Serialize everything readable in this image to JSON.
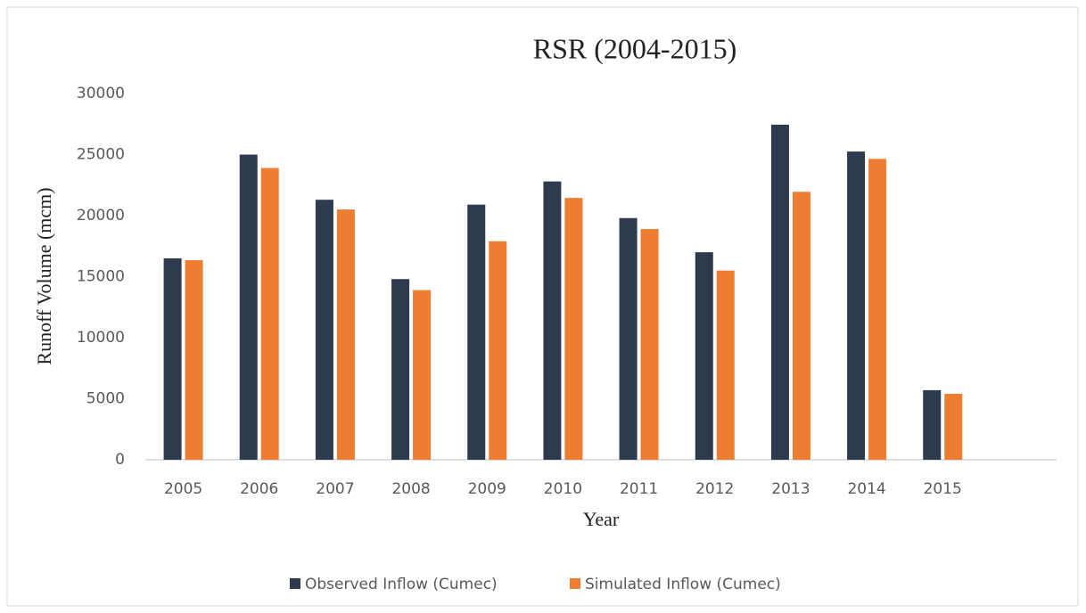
{
  "chart_data": {
    "type": "bar",
    "title": "RSR (2004-2015)",
    "x_label": "Year",
    "y_label": "Runoff Volume (mcm)",
    "categories": [
      "2005",
      "2006",
      "2007",
      "2008",
      "2009",
      "2010",
      "2011",
      "2012",
      "2013",
      "2014",
      "2015",
      null
    ],
    "series": [
      {
        "name": "Observed Inflow (Cumec)",
        "color": "#2e3a4e",
        "values": [
          16500,
          25000,
          21300,
          14800,
          20900,
          22800,
          19800,
          17000,
          27450,
          25250,
          5700,
          null
        ]
      },
      {
        "name": "Simulated Inflow (Cumec)",
        "color": "#ed7d31",
        "values": [
          16350,
          23900,
          20500,
          13900,
          17900,
          21450,
          18900,
          15500,
          21950,
          24650,
          5400,
          null
        ]
      }
    ],
    "ylim": [
      0,
      30000
    ],
    "yticks": [
      0,
      5000,
      10000,
      15000,
      20000,
      25000,
      30000
    ],
    "grid": false,
    "legend": "bottom"
  }
}
